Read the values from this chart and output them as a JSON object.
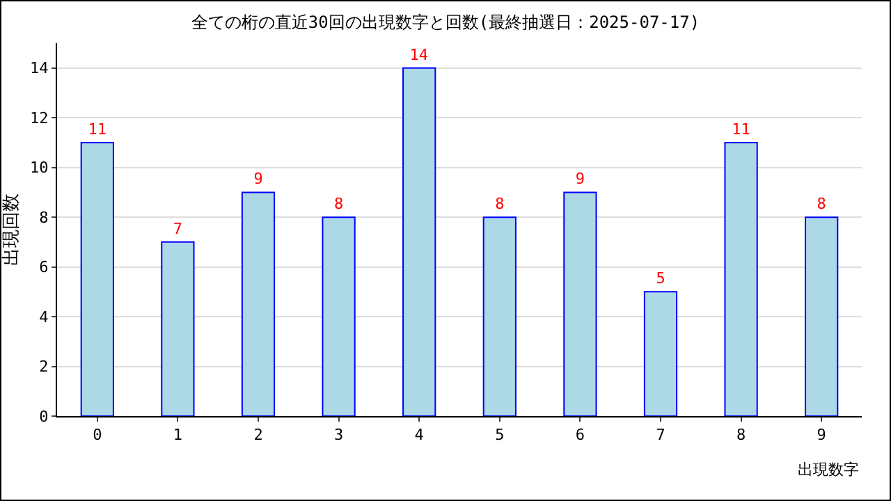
{
  "chart_data": {
    "type": "bar",
    "title": "全ての桁の直近30回の出現数字と回数(最終抽選日：2025-07-17)",
    "xlabel": "出現数字",
    "ylabel": "出現回数",
    "categories": [
      "0",
      "1",
      "2",
      "3",
      "4",
      "5",
      "6",
      "7",
      "8",
      "9"
    ],
    "values": [
      11,
      7,
      9,
      8,
      14,
      8,
      9,
      5,
      11,
      8
    ],
    "color": "#add8e6",
    "ylim": [
      0,
      15
    ],
    "yticks": [
      0,
      2,
      4,
      6,
      8,
      10,
      12,
      14
    ],
    "grid": "y",
    "data_labels": true
  }
}
